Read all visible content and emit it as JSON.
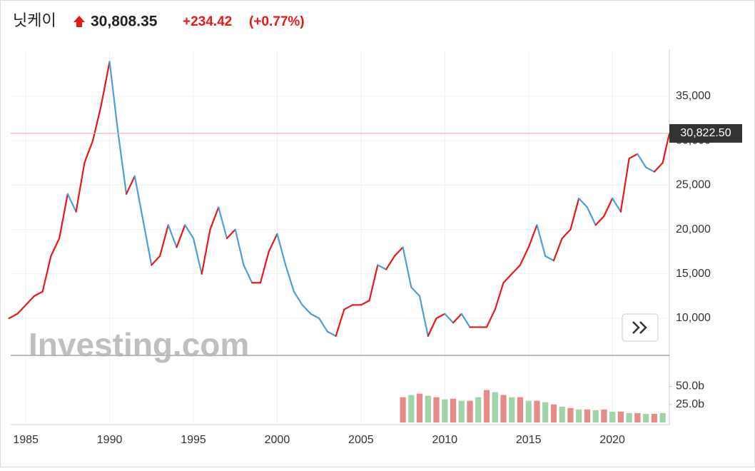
{
  "header": {
    "name": "닛케이",
    "price": "30,808.35",
    "change": "+234.42",
    "change_pct": "(+0.77%)"
  },
  "watermark": "Investing.com",
  "chart_data": [
    {
      "type": "line",
      "up_color": "#e8171b",
      "down_color": "#4a9fdb",
      "grid": true,
      "x": [
        1984.0,
        1984.5,
        1985.0,
        1985.5,
        1986.0,
        1986.5,
        1987.0,
        1987.5,
        1988.0,
        1988.5,
        1989.0,
        1989.5,
        1990.0,
        1990.5,
        1991.0,
        1991.5,
        1992.0,
        1992.5,
        1993.0,
        1993.5,
        1994.0,
        1994.5,
        1995.0,
        1995.5,
        1996.0,
        1996.5,
        1997.0,
        1997.5,
        1998.0,
        1998.5,
        1999.0,
        1999.5,
        2000.0,
        2000.5,
        2001.0,
        2001.5,
        2002.0,
        2002.5,
        2003.0,
        2003.5,
        2004.0,
        2004.5,
        2005.0,
        2005.5,
        2006.0,
        2006.5,
        2007.0,
        2007.5,
        2008.0,
        2008.5,
        2009.0,
        2009.5,
        2010.0,
        2010.5,
        2011.0,
        2011.5,
        2012.0,
        2012.5,
        2013.0,
        2013.5,
        2014.0,
        2014.5,
        2015.0,
        2015.5,
        2016.0,
        2016.5,
        2017.0,
        2017.5,
        2018.0,
        2018.5,
        2019.0,
        2019.5,
        2020.0,
        2020.5,
        2021.0,
        2021.5,
        2022.0,
        2022.5,
        2023.0,
        2023.4
      ],
      "values": [
        10000,
        10500,
        11500,
        12500,
        13000,
        17000,
        19000,
        24000,
        22000,
        27500,
        30000,
        34000,
        38900,
        31000,
        24000,
        26000,
        21000,
        16000,
        17000,
        20500,
        18000,
        20500,
        19000,
        15000,
        20000,
        22500,
        19000,
        20000,
        16000,
        14000,
        14000,
        17500,
        19500,
        16000,
        13000,
        11500,
        10500,
        10000,
        8500,
        8000,
        11000,
        11500,
        11500,
        12000,
        16000,
        15500,
        17000,
        18000,
        13500,
        12500,
        8000,
        10000,
        10500,
        9500,
        10500,
        9000,
        9000,
        9000,
        11000,
        14000,
        15000,
        16000,
        18000,
        20500,
        17000,
        16500,
        19000,
        20000,
        23500,
        22500,
        20500,
        21500,
        23500,
        22000,
        28000,
        28500,
        27000,
        26500,
        27500,
        30808
      ],
      "xlim": [
        1984.1,
        2023.4
      ],
      "ylim": [
        5820,
        40220
      ],
      "xticks": [
        1985,
        1990,
        1995,
        2000,
        2005,
        2010,
        2015,
        2020
      ],
      "yticks": [
        {
          "value": 10000,
          "label": "10,000"
        },
        {
          "value": 15000,
          "label": "15,000"
        },
        {
          "value": 20000,
          "label": "20,000"
        },
        {
          "value": 25000,
          "label": "25,000"
        },
        {
          "value": 30000,
          "label": "30,000"
        },
        {
          "value": 35000,
          "label": "35,000"
        }
      ],
      "price_line": {
        "value": 30822.5,
        "label": "30,822.50",
        "color": "#f2a6a6"
      }
    },
    {
      "type": "volume",
      "x": [
        2007.5,
        2008.0,
        2008.5,
        2009.0,
        2009.5,
        2010.0,
        2010.5,
        2011.0,
        2011.5,
        2012.0,
        2012.5,
        2013.0,
        2013.5,
        2014.0,
        2014.5,
        2015.0,
        2015.5,
        2016.0,
        2016.5,
        2017.0,
        2017.5,
        2018.0,
        2018.5,
        2019.0,
        2019.5,
        2020.0,
        2020.5,
        2021.0,
        2021.5,
        2022.0,
        2022.5,
        2023.0
      ],
      "values": [
        35,
        38,
        40,
        37,
        35,
        32,
        33,
        30,
        30,
        35,
        45,
        42,
        38,
        35,
        35,
        30,
        30,
        28,
        25,
        22,
        20,
        18,
        18,
        17,
        18,
        15,
        15,
        13,
        13,
        12,
        12,
        13
      ],
      "colors": [
        "#e88a8a",
        "#9fd4a8",
        "#e88a8a",
        "#9fd4a8",
        "#e88a8a",
        "#9fd4a8",
        "#e88a8a",
        "#9fd4a8",
        "#e88a8a",
        "#9fd4a8",
        "#e88a8a",
        "#9fd4a8",
        "#e88a8a",
        "#9fd4a8",
        "#e88a8a",
        "#9fd4a8",
        "#e88a8a",
        "#9fd4a8",
        "#e88a8a",
        "#9fd4a8",
        "#e88a8a",
        "#9fd4a8",
        "#e88a8a",
        "#9fd4a8",
        "#e88a8a",
        "#9fd4a8",
        "#e88a8a",
        "#9fd4a8",
        "#e88a8a",
        "#9fd4a8",
        "#e88a8a",
        "#9fd4a8"
      ],
      "ylim": [
        0,
        93
      ],
      "yticks": [
        {
          "value": 25,
          "label": "25.0b"
        },
        {
          "value": 50,
          "label": "50.0b"
        }
      ]
    }
  ]
}
